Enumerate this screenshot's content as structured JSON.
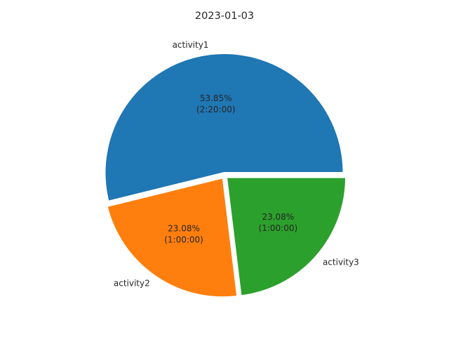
{
  "chart_data": {
    "type": "pie",
    "title": "2023-01-03",
    "start_angle_deg": 0,
    "direction": "counterclockwise",
    "slices": [
      {
        "label": "activity1",
        "value": 53.85,
        "percent_text": "53.85%",
        "duration_text": "(2:20:00)",
        "color": "#1f77b4"
      },
      {
        "label": "activity2",
        "value": 23.08,
        "percent_text": "23.08%",
        "duration_text": "(1:00:00)",
        "color": "#ff7f0e"
      },
      {
        "label": "activity3",
        "value": 23.08,
        "percent_text": "23.08%",
        "duration_text": "(1:00:00)",
        "color": "#2ca02c"
      }
    ]
  }
}
